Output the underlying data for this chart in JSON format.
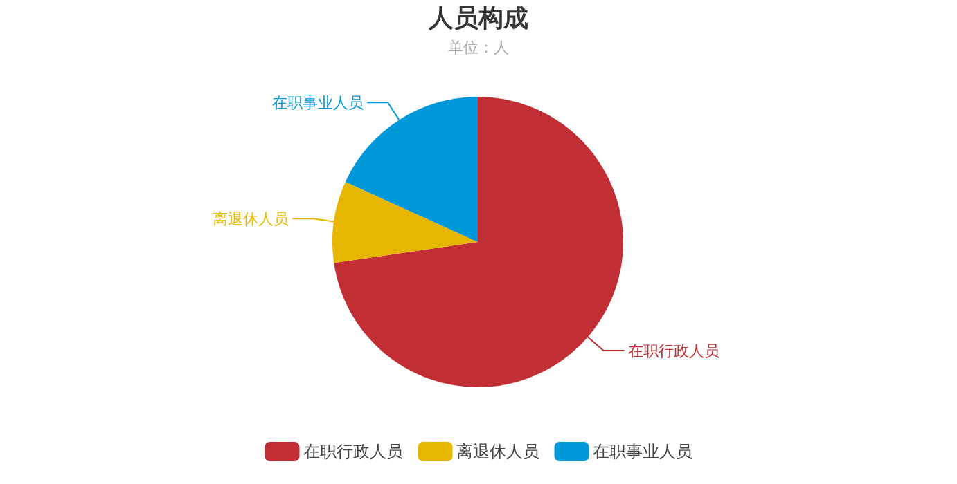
{
  "chart_data": {
    "type": "pie",
    "title": "人员构成",
    "subtitle": "单位：人",
    "categories": [
      "在职行政人员",
      "离退休人员",
      "在职事业人员"
    ],
    "values": [
      72.7,
      9.1,
      18.2
    ],
    "colors": [
      "#c12e34",
      "#e6b600",
      "#0098d9"
    ],
    "legend": "bottom"
  }
}
